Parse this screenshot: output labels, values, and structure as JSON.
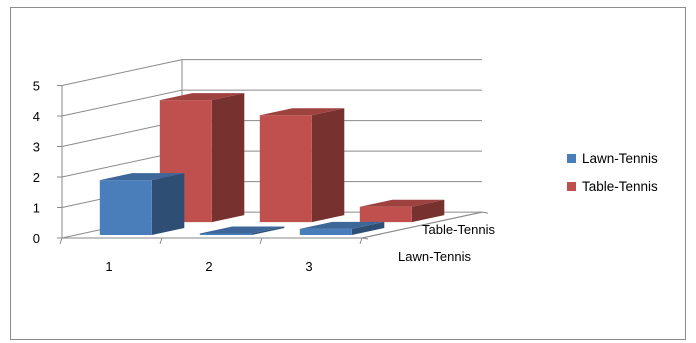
{
  "chart_data": {
    "type": "bar",
    "three_d": true,
    "title": "",
    "categories": [
      "1",
      "2",
      "3"
    ],
    "series": [
      {
        "name": "Lawn-Tennis",
        "values": [
          1.8,
          0.05,
          0.2
        ],
        "color": "#4a7ebb"
      },
      {
        "name": "Table-Tennis",
        "values": [
          4.0,
          3.5,
          0.5
        ],
        "color": "#c0504d"
      }
    ],
    "y_ticks": [
      "0",
      "1",
      "2",
      "3",
      "4",
      "5"
    ],
    "depth_labels": [
      "Table-Tennis",
      "Lawn-Tennis"
    ],
    "ylim": [
      0,
      5
    ],
    "grid": true,
    "legend_position": "right"
  }
}
